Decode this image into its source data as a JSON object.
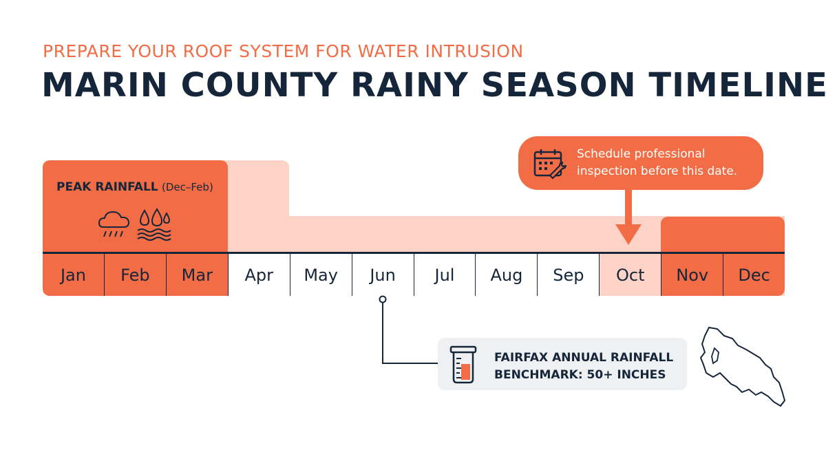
{
  "header": {
    "eyebrow": "PREPARE YOUR ROOF SYSTEM FOR WATER INTRUSION",
    "title": "MARIN COUNTY RAINY SEASON TIMELINE"
  },
  "timeline": {
    "months": [
      "Jan",
      "Feb",
      "Mar",
      "Apr",
      "May",
      "Jun",
      "Jul",
      "Aug",
      "Sep",
      "Oct",
      "Nov",
      "Dec"
    ],
    "peak_label": "PEAK RAINFALL",
    "peak_range": "(Dec–Feb)"
  },
  "callout": {
    "text": "Schedule professional inspection before this date.",
    "icon": "calendar-wrench-icon",
    "target_month": "Oct"
  },
  "benchmark": {
    "text": "FAIRFAX ANNUAL RAINFALL BENCHMARK: 50+ INCHES",
    "icon": "rain-gauge-icon",
    "anchor_month": "Jun"
  },
  "icons": {
    "peak": [
      "rain-cloud-icon",
      "water-drops-icon"
    ],
    "map": "marin-county-map-icon"
  },
  "colors": {
    "accent": "#f26d45",
    "light_accent": "#fcd3c6",
    "navy": "#15253a",
    "benchmark_bg": "#eef0f2"
  }
}
